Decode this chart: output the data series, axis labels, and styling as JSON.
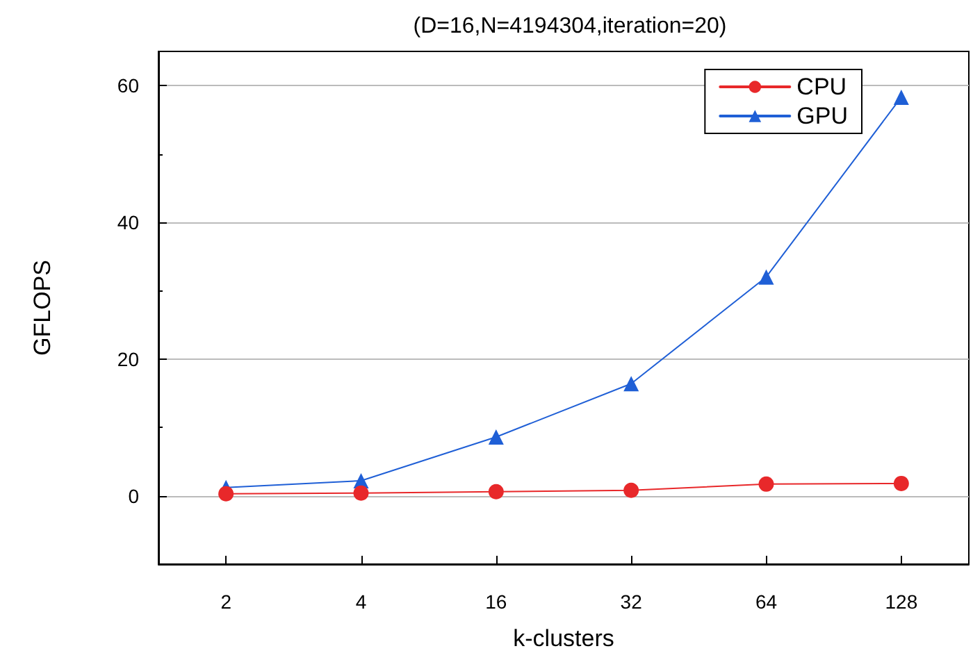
{
  "chart_data": {
    "type": "line",
    "title": "(D=16,N=4194304,iteration=20)",
    "xlabel": "k-clusters",
    "ylabel": "GFLOPS",
    "categories": [
      "2",
      "4",
      "16",
      "32",
      "64",
      "128"
    ],
    "series": [
      {
        "name": "CPU",
        "color": "#e8282a",
        "marker": "circle",
        "values": [
          0.3,
          0.4,
          0.6,
          0.8,
          1.7,
          1.8
        ]
      },
      {
        "name": "GPU",
        "color": "#1f5fd6",
        "marker": "triangle",
        "values": [
          1.2,
          2.2,
          8.6,
          16.4,
          32,
          58.3
        ]
      }
    ],
    "ylim": [
      -10,
      65
    ],
    "yticks": [
      0,
      20,
      40,
      60
    ],
    "grid": "y",
    "legend": "top right",
    "line_style": "solid"
  }
}
